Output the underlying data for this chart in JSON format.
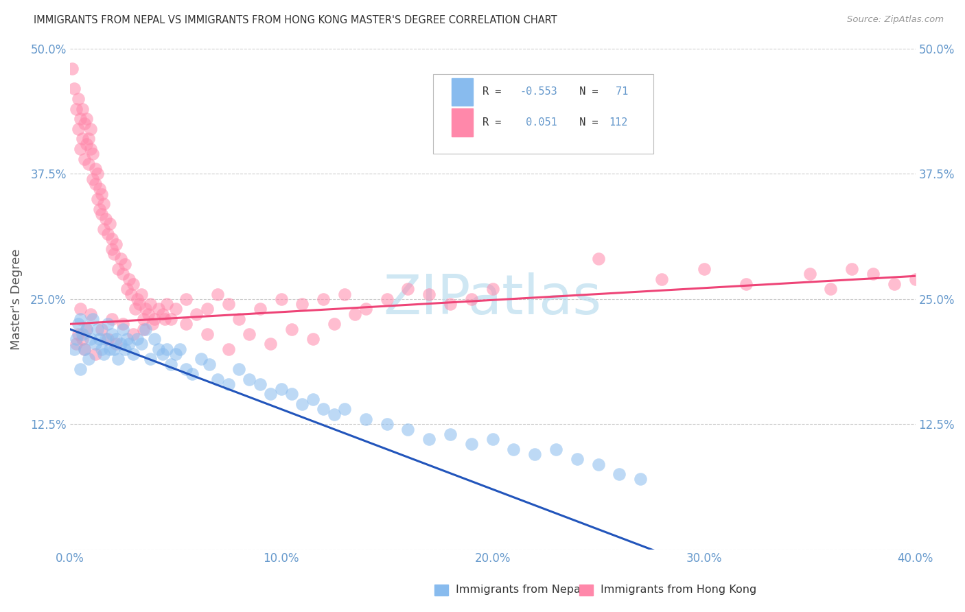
{
  "title": "IMMIGRANTS FROM NEPAL VS IMMIGRANTS FROM HONG KONG MASTER'S DEGREE CORRELATION CHART",
  "source": "Source: ZipAtlas.com",
  "ylabel": "Master's Degree",
  "x_tick_labels": [
    "0.0%",
    "10.0%",
    "20.0%",
    "30.0%",
    "40.0%"
  ],
  "x_tick_values": [
    0.0,
    10.0,
    20.0,
    30.0,
    40.0
  ],
  "y_tick_labels_left": [
    "",
    "12.5%",
    "25.0%",
    "37.5%",
    "50.0%"
  ],
  "y_tick_labels_right": [
    "",
    "12.5%",
    "25.0%",
    "37.5%",
    "50.0%"
  ],
  "y_tick_values": [
    0.0,
    12.5,
    25.0,
    37.5,
    50.0
  ],
  "xlim": [
    0.0,
    40.0
  ],
  "ylim": [
    0.0,
    50.0
  ],
  "legend_label1": "Immigrants from Nepal",
  "legend_label2": "Immigrants from Hong Kong",
  "nepal_color": "#88bbee",
  "hk_color": "#ff88aa",
  "nepal_R": -0.553,
  "nepal_N": 71,
  "hk_R": 0.051,
  "hk_N": 112,
  "nepal_line_color": "#2255bb",
  "hk_line_color": "#ee4477",
  "watermark": "ZIPatlas",
  "watermark_color": "#bbddee",
  "grid_color": "#cccccc",
  "title_color": "#333333",
  "axis_label_color": "#555555",
  "tick_color": "#6699cc",
  "background_color": "#ffffff",
  "nepal_x_data": [
    0.2,
    0.3,
    0.4,
    0.5,
    0.5,
    0.6,
    0.7,
    0.8,
    0.9,
    1.0,
    1.1,
    1.2,
    1.3,
    1.4,
    1.5,
    1.6,
    1.7,
    1.8,
    1.9,
    2.0,
    2.1,
    2.2,
    2.3,
    2.4,
    2.5,
    2.6,
    2.7,
    2.8,
    3.0,
    3.2,
    3.4,
    3.6,
    3.8,
    4.0,
    4.2,
    4.4,
    4.6,
    4.8,
    5.0,
    5.2,
    5.5,
    5.8,
    6.2,
    6.6,
    7.0,
    7.5,
    8.0,
    8.5,
    9.0,
    9.5,
    10.0,
    10.5,
    11.0,
    11.5,
    12.0,
    12.5,
    13.0,
    14.0,
    15.0,
    16.0,
    17.0,
    18.0,
    19.0,
    20.0,
    21.0,
    22.0,
    23.0,
    24.0,
    25.0,
    26.0,
    27.0
  ],
  "nepal_y_data": [
    20.0,
    21.0,
    22.5,
    23.0,
    18.0,
    21.5,
    20.0,
    22.0,
    19.0,
    21.0,
    23.0,
    20.5,
    22.0,
    21.0,
    20.0,
    19.5,
    21.0,
    22.5,
    20.0,
    21.5,
    20.0,
    21.0,
    19.0,
    20.5,
    22.0,
    20.0,
    21.0,
    20.5,
    19.5,
    21.0,
    20.5,
    22.0,
    19.0,
    21.0,
    20.0,
    19.5,
    20.0,
    18.5,
    19.5,
    20.0,
    18.0,
    17.5,
    19.0,
    18.5,
    17.0,
    16.5,
    18.0,
    17.0,
    16.5,
    15.5,
    16.0,
    15.5,
    14.5,
    15.0,
    14.0,
    13.5,
    14.0,
    13.0,
    12.5,
    12.0,
    11.0,
    11.5,
    10.5,
    11.0,
    10.0,
    9.5,
    10.0,
    9.0,
    8.5,
    7.5,
    7.0
  ],
  "hk_x_data": [
    0.1,
    0.2,
    0.3,
    0.4,
    0.4,
    0.5,
    0.5,
    0.6,
    0.6,
    0.7,
    0.7,
    0.8,
    0.8,
    0.9,
    0.9,
    1.0,
    1.0,
    1.1,
    1.1,
    1.2,
    1.2,
    1.3,
    1.3,
    1.4,
    1.4,
    1.5,
    1.5,
    1.6,
    1.6,
    1.7,
    1.8,
    1.9,
    2.0,
    2.0,
    2.1,
    2.2,
    2.3,
    2.4,
    2.5,
    2.6,
    2.7,
    2.8,
    2.9,
    3.0,
    3.1,
    3.2,
    3.3,
    3.4,
    3.5,
    3.6,
    3.7,
    3.8,
    3.9,
    4.0,
    4.2,
    4.4,
    4.6,
    4.8,
    5.0,
    5.5,
    6.0,
    6.5,
    7.0,
    7.5,
    8.0,
    9.0,
    10.0,
    11.0,
    12.0,
    13.0,
    14.0,
    15.0,
    16.0,
    17.0,
    18.0,
    19.0,
    20.0,
    25.0,
    28.0,
    30.0,
    32.0,
    35.0,
    36.0,
    37.0,
    38.0,
    39.0,
    40.0,
    1.5,
    2.0,
    2.5,
    3.0,
    0.5,
    1.0,
    0.8,
    0.6,
    0.3,
    0.4,
    0.7,
    1.2,
    1.8,
    2.2,
    3.5,
    4.5,
    5.5,
    6.5,
    7.5,
    8.5,
    9.5,
    10.5,
    11.5,
    12.5,
    13.5
  ],
  "hk_y_data": [
    48.0,
    46.0,
    44.0,
    45.0,
    42.0,
    43.0,
    40.0,
    44.0,
    41.0,
    42.5,
    39.0,
    43.0,
    40.5,
    41.0,
    38.5,
    40.0,
    42.0,
    39.5,
    37.0,
    38.0,
    36.5,
    37.5,
    35.0,
    36.0,
    34.0,
    35.5,
    33.5,
    34.5,
    32.0,
    33.0,
    31.5,
    32.5,
    30.0,
    31.0,
    29.5,
    30.5,
    28.0,
    29.0,
    27.5,
    28.5,
    26.0,
    27.0,
    25.5,
    26.5,
    24.0,
    25.0,
    24.5,
    25.5,
    23.0,
    24.0,
    23.5,
    24.5,
    22.5,
    23.0,
    24.0,
    23.5,
    24.5,
    23.0,
    24.0,
    25.0,
    23.5,
    24.0,
    25.5,
    24.5,
    23.0,
    24.0,
    25.0,
    24.5,
    25.0,
    25.5,
    24.0,
    25.0,
    26.0,
    25.5,
    24.5,
    25.0,
    26.0,
    29.0,
    27.0,
    28.0,
    26.5,
    27.5,
    26.0,
    28.0,
    27.5,
    26.5,
    27.0,
    22.0,
    23.0,
    22.5,
    21.5,
    24.0,
    23.5,
    22.0,
    21.0,
    20.5,
    21.5,
    20.0,
    19.5,
    21.0,
    20.5,
    22.0,
    23.0,
    22.5,
    21.5,
    20.0,
    21.5,
    20.5,
    22.0,
    21.0,
    22.5,
    23.5
  ]
}
